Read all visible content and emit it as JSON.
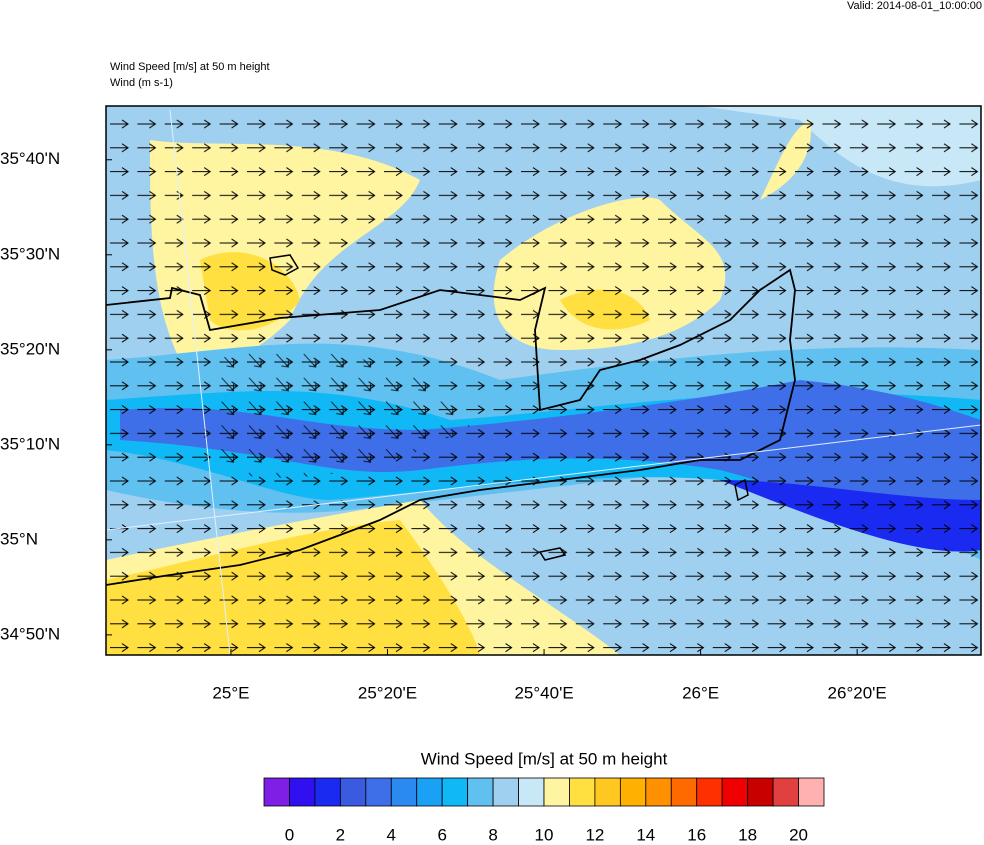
{
  "header": {
    "valid": "Valid: 2014-08-01_10:00:00",
    "title": "Wind Speed [m/s] at 50 m height",
    "subtitle": "Wind   (m s-1)"
  },
  "chart_data": {
    "type": "map",
    "xlim": [
      24.734,
      26.597
    ],
    "ylim": [
      34.798,
      35.761
    ],
    "xticks": [
      {
        "value": 25,
        "label": "25°E"
      },
      {
        "value": 25.3333,
        "label": "25°20'E"
      },
      {
        "value": 25.6667,
        "label": "25°40'E"
      },
      {
        "value": 26,
        "label": "26°E"
      },
      {
        "value": 26.3333,
        "label": "26°20'E"
      }
    ],
    "yticks": [
      {
        "value": 34.8333,
        "label": "34°50'N"
      },
      {
        "value": 35,
        "label": "35°N"
      },
      {
        "value": 35.1667,
        "label": "35°10'N"
      },
      {
        "value": 35.3333,
        "label": "35°20'N"
      },
      {
        "value": 35.5,
        "label": "35°30'N"
      },
      {
        "value": 35.6667,
        "label": "35°40'N"
      }
    ]
  },
  "colorbar": {
    "label": "Wind Speed [m/s] at 50 m height",
    "lim": [
      -1,
      21
    ],
    "ticks": [
      0,
      2,
      4,
      6,
      8,
      10,
      12,
      14,
      16,
      18,
      20
    ],
    "colors": [
      "#7f1fe6",
      "#3010f0",
      "#1a2af0",
      "#3a5ae0",
      "#3f6fe8",
      "#2a8af0",
      "#1aa0f5",
      "#10b8f5",
      "#60c0f0",
      "#a0d0f0",
      "#c8e8f8",
      "#fff4a0",
      "#ffe040",
      "#ffc820",
      "#ffb000",
      "#ff9000",
      "#ff6a00",
      "#ff3000",
      "#f00000",
      "#c80000",
      "#e04040",
      "#ffb0b0"
    ]
  }
}
